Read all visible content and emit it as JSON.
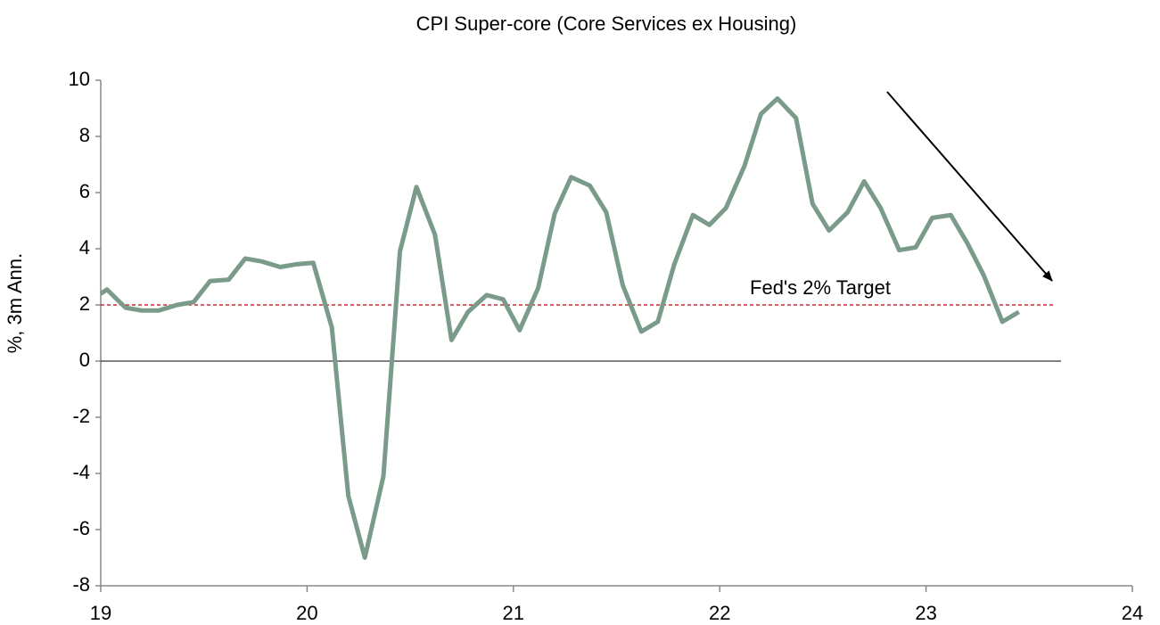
{
  "chart_data": {
    "type": "line",
    "title": "CPI Super-core (Core Services ex Housing)",
    "y_label": "%, 3m Ann.",
    "x": [
      19.0,
      19.03,
      19.12,
      19.2,
      19.28,
      19.37,
      19.45,
      19.53,
      19.62,
      19.7,
      19.78,
      19.87,
      19.95,
      20.03,
      20.12,
      20.2,
      20.28,
      20.37,
      20.45,
      20.53,
      20.62,
      20.7,
      20.78,
      20.87,
      20.95,
      21.03,
      21.12,
      21.2,
      21.28,
      21.37,
      21.45,
      21.53,
      21.62,
      21.7,
      21.78,
      21.87,
      21.95,
      22.03,
      22.12,
      22.2,
      22.28,
      22.37,
      22.45,
      22.53,
      22.62,
      22.7,
      22.78,
      22.87,
      22.95,
      23.03,
      23.12,
      23.2,
      23.28,
      23.37,
      23.45
    ],
    "series": [
      {
        "name": "CPI Super-core",
        "color": "#7a9a8a",
        "values": [
          2.4,
          2.55,
          1.9,
          1.8,
          1.8,
          2.0,
          2.1,
          2.85,
          2.9,
          3.65,
          3.55,
          3.35,
          3.45,
          3.5,
          1.2,
          -4.8,
          -7,
          -4.1,
          3.9,
          6.2,
          4.5,
          0.75,
          1.75,
          2.35,
          2.2,
          1.1,
          2.6,
          5.25,
          6.55,
          6.25,
          5.3,
          2.7,
          1.05,
          1.4,
          3.45,
          5.2,
          4.85,
          5.45,
          6.95,
          8.8,
          9.35,
          8.65,
          5.6,
          4.65,
          5.3,
          6.4,
          5.45,
          3.95,
          4.05,
          5.1,
          5.2,
          4.2,
          3.05,
          1.4,
          1.75
        ]
      }
    ],
    "target_line": {
      "value": 2,
      "label": "Fed's 2% Target",
      "color": "#c00000"
    },
    "xlim": [
      19,
      24
    ],
    "xticks": [
      19,
      20,
      21,
      22,
      23,
      24
    ],
    "ylim": [
      -8,
      10
    ],
    "yticks": [
      -8,
      -6,
      -4,
      -2,
      0,
      2,
      4,
      6,
      8,
      10
    ]
  }
}
